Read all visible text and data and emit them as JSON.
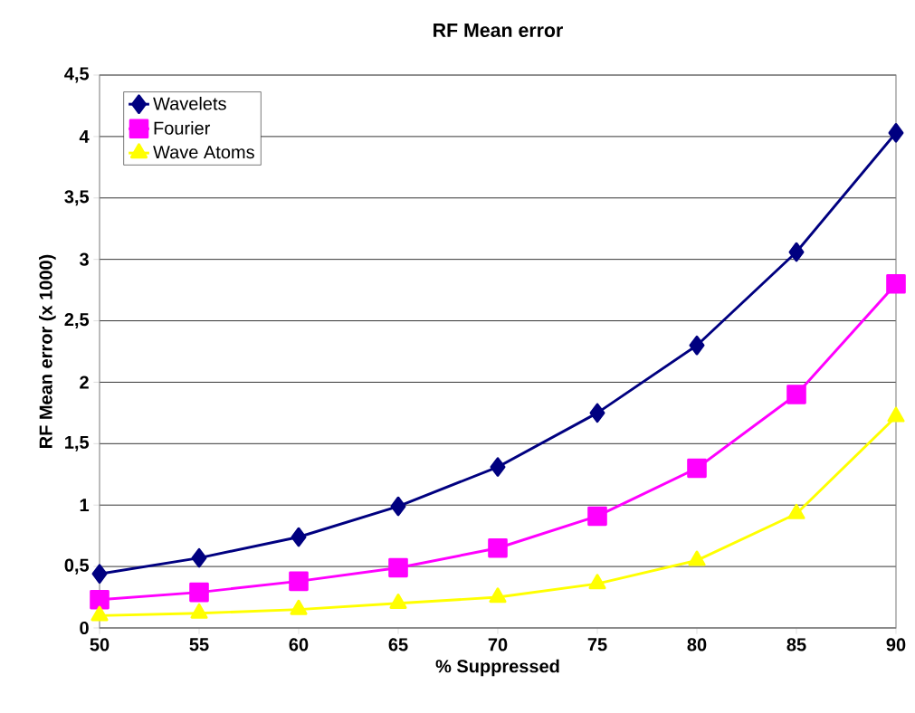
{
  "chart_data": {
    "type": "line",
    "title": "RF Mean error",
    "xlabel": "% Suppressed",
    "ylabel": "RF Mean error (x 1000)",
    "x": [
      50,
      55,
      60,
      65,
      70,
      75,
      80,
      85,
      90
    ],
    "series": [
      {
        "name": "Wavelets",
        "color": "#000080",
        "marker": "diamond",
        "values": [
          0.44,
          0.57,
          0.74,
          0.99,
          1.31,
          1.75,
          2.3,
          3.06,
          4.03
        ]
      },
      {
        "name": "Fourier",
        "color": "#ff00ff",
        "marker": "square",
        "values": [
          0.23,
          0.29,
          0.38,
          0.49,
          0.65,
          0.91,
          1.3,
          1.9,
          2.8
        ]
      },
      {
        "name": "Wave Atoms",
        "color": "#ffff00",
        "marker": "triangle",
        "values": [
          0.1,
          0.12,
          0.15,
          0.2,
          0.25,
          0.36,
          0.55,
          0.93,
          1.72
        ]
      }
    ],
    "xlim": [
      50,
      90
    ],
    "xticks": [
      50,
      55,
      60,
      65,
      70,
      75,
      80,
      85,
      90
    ],
    "ylim": [
      0,
      4.5
    ],
    "yticks": [
      0,
      {
        "value": 0.5,
        "label": "0,5"
      },
      1,
      {
        "value": 1.5,
        "label": "1,5"
      },
      2,
      {
        "value": 2.5,
        "label": "2,5"
      },
      3,
      {
        "value": 3.5,
        "label": "3,5"
      },
      4,
      {
        "value": 4.5,
        "label": "4,5"
      }
    ],
    "grid": "y",
    "legend": "top left",
    "line_style": "solid"
  }
}
